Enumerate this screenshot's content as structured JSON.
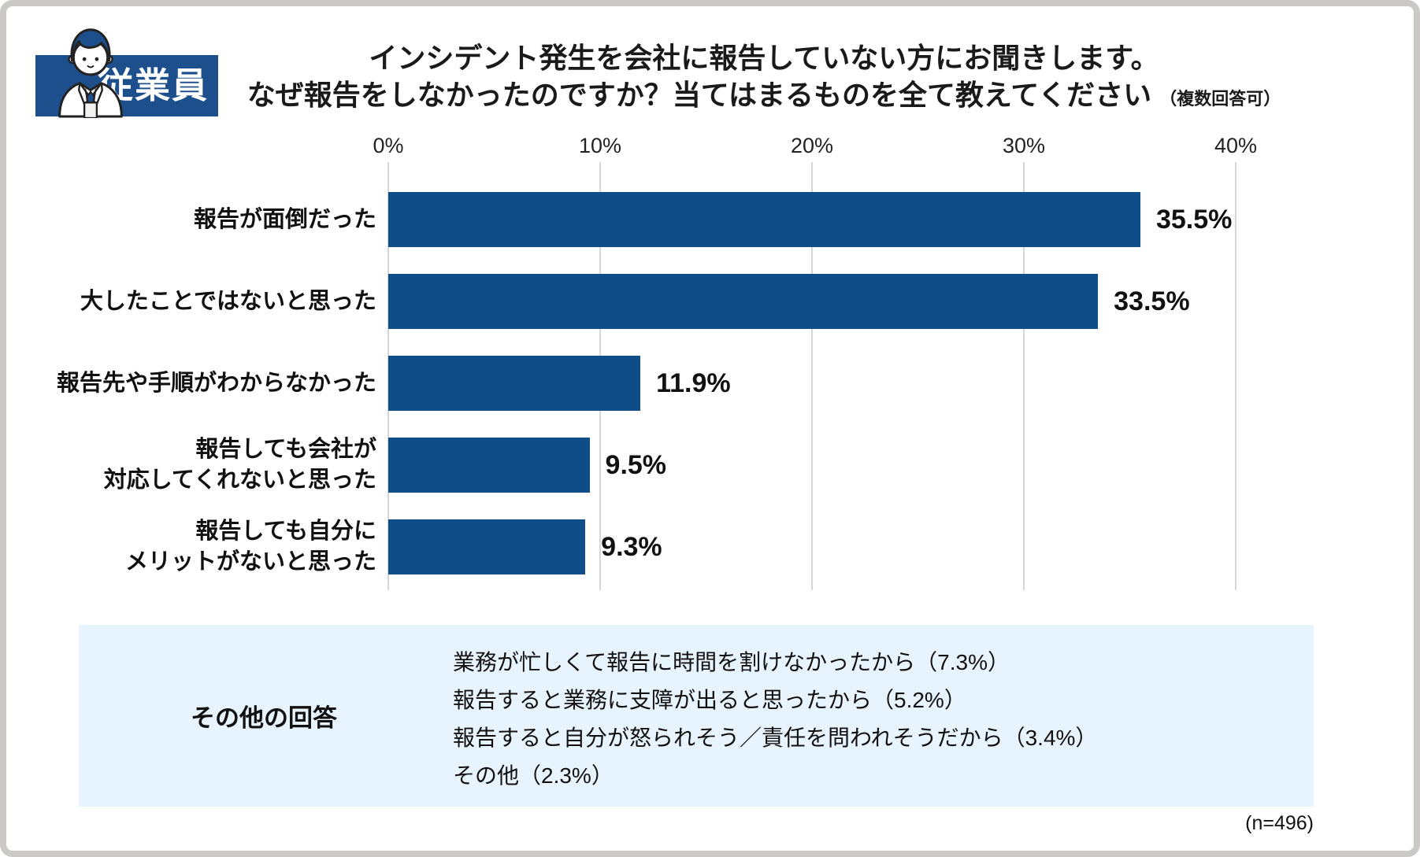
{
  "badge": {
    "label": "従業員",
    "illustration": "employee-man-icon"
  },
  "title": {
    "line1": "インシデント発生を会社に報告していない方にお聞きします。",
    "line2": "なぜ報告をしなかったのですか？当てはまるものを全て教えてください",
    "note": "（複数回答可）"
  },
  "chart_data": {
    "type": "bar",
    "orientation": "horizontal",
    "title": "インシデント発生を会社に報告していない方にお聞きします。なぜ報告をしなかったのですか？当てはまるものを全て教えてください（複数回答可）",
    "categories": [
      "報告が面倒だった",
      "大したことではないと思った",
      "報告先や手順がわからなかった",
      "報告しても会社が対応してくれないと思った",
      "報告しても自分にメリットがないと思った"
    ],
    "category_lines": [
      [
        "報告が面倒だった"
      ],
      [
        "大したことではないと思った"
      ],
      [
        "報告先や手順がわからなかった"
      ],
      [
        "報告しても会社が",
        "対応してくれないと思った"
      ],
      [
        "報告しても自分に",
        "メリットがないと思った"
      ]
    ],
    "values": [
      35.5,
      33.5,
      11.9,
      9.5,
      9.3
    ],
    "value_labels": [
      "35.5%",
      "33.5%",
      "11.9%",
      "9.5%",
      "9.3%"
    ],
    "xlim": [
      0,
      40
    ],
    "x_ticks": [
      "0%",
      "10%",
      "20%",
      "30%",
      "40%"
    ],
    "grid": true,
    "legend": false,
    "other_answers": {
      "label": "その他の回答",
      "items": [
        {
          "text": "業務が忙しくて報告に時間を割けなかったから",
          "pct": 7.3
        },
        {
          "text": "報告すると業務に支障が出ると思ったから",
          "pct": 5.2
        },
        {
          "text": "報告すると自分が怒られそう／責任を問われそうだから",
          "pct": 3.4
        },
        {
          "text": "その他",
          "pct": 2.3
        }
      ]
    },
    "sample_size": "(n=496)"
  },
  "other_box": {
    "label": "その他の回答",
    "lines": [
      "業務が忙しくて報告に時間を割けなかったから（7.3%）",
      "報告すると業務に支障が出ると思ったから（5.2%）",
      "報告すると自分が怒られそう／責任を問われそうだから（3.4%）",
      "その他（2.3%）"
    ]
  },
  "footnote": "(n=496)",
  "colors": {
    "bar": "#0e4d87",
    "badge": "#1d4f8d",
    "box_bg": "#e7f4fd",
    "grid": "#d6d6d6",
    "frame_border": "#cac9c7"
  }
}
